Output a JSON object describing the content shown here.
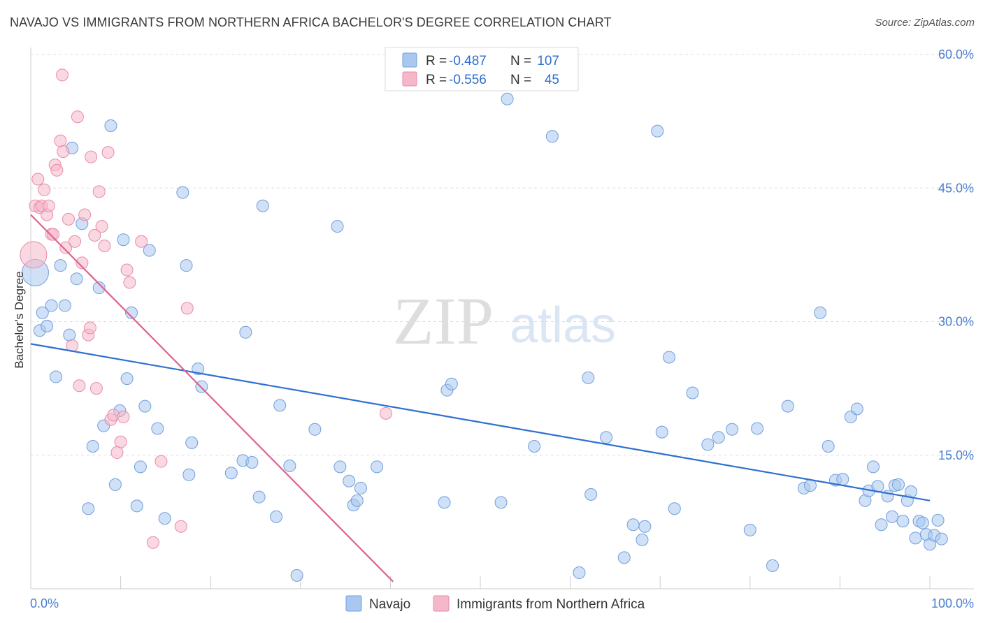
{
  "header": {
    "title": "NAVAJO VS IMMIGRANTS FROM NORTHERN AFRICA BACHELOR'S DEGREE CORRELATION CHART",
    "source": "Source: ZipAtlas.com"
  },
  "watermark": {
    "zip": "ZIP",
    "atlas": "atlas"
  },
  "legend": {
    "rows": [
      {
        "r_label": "R =",
        "r_value": "-0.487",
        "n_label": "N =",
        "n_value": "107"
      },
      {
        "r_label": "R =",
        "r_value": "-0.556",
        "n_label": "N =",
        "n_value": "45"
      }
    ]
  },
  "colors": {
    "navajo_fill": "#a9c8f0",
    "navajo_stroke": "#6f9fdc",
    "navajo_line": "#2f6fcf",
    "immig_fill": "#f5b8cb",
    "immig_stroke": "#e98aa8",
    "immig_line": "#e0628e",
    "grid": "#dddddd",
    "tick_label": "#4a7fd0"
  },
  "chart_data": {
    "type": "scatter",
    "title": "NAVAJO VS IMMIGRANTS FROM NORTHERN AFRICA BACHELOR'S DEGREE CORRELATION CHART",
    "xlabel": "",
    "ylabel": "Bachelor's Degree",
    "xlim": [
      0,
      100
    ],
    "ylim": [
      0,
      60
    ],
    "x_tick_labels": [
      "0.0%",
      "100.0%"
    ],
    "y_ticks": [
      15,
      30,
      45,
      60
    ],
    "y_tick_labels": [
      "15.0%",
      "30.0%",
      "45.0%",
      "60.0%"
    ],
    "grid": "horizontal dashed",
    "legend_position": "top-center",
    "series": [
      {
        "name": "Navajo",
        "color": "#a9c8f0",
        "trend": {
          "x": [
            0,
            100
          ],
          "y": [
            27.5,
            9.9
          ]
        },
        "points": [
          [
            0.5,
            35.5
          ],
          [
            1.0,
            29.0
          ],
          [
            1.3,
            31.0
          ],
          [
            1.8,
            29.5
          ],
          [
            2.3,
            31.8
          ],
          [
            2.8,
            23.8
          ],
          [
            3.3,
            36.3
          ],
          [
            3.8,
            31.8
          ],
          [
            4.3,
            28.5
          ],
          [
            4.6,
            49.5
          ],
          [
            5.1,
            34.8
          ],
          [
            5.7,
            41.0
          ],
          [
            6.4,
            9.0
          ],
          [
            6.9,
            16.0
          ],
          [
            7.6,
            33.8
          ],
          [
            8.1,
            18.3
          ],
          [
            8.9,
            52.0
          ],
          [
            9.4,
            11.7
          ],
          [
            9.9,
            20.0
          ],
          [
            10.3,
            39.2
          ],
          [
            10.7,
            23.6
          ],
          [
            11.2,
            31.0
          ],
          [
            11.8,
            9.3
          ],
          [
            12.2,
            13.7
          ],
          [
            12.7,
            20.5
          ],
          [
            13.2,
            38.0
          ],
          [
            14.1,
            18.0
          ],
          [
            14.9,
            7.9
          ],
          [
            16.9,
            44.5
          ],
          [
            17.3,
            36.3
          ],
          [
            17.6,
            12.8
          ],
          [
            17.9,
            16.4
          ],
          [
            18.6,
            24.7
          ],
          [
            19.0,
            22.7
          ],
          [
            22.3,
            13.0
          ],
          [
            23.6,
            14.4
          ],
          [
            23.9,
            28.8
          ],
          [
            24.6,
            14.2
          ],
          [
            25.4,
            10.3
          ],
          [
            25.8,
            43.0
          ],
          [
            27.3,
            8.1
          ],
          [
            27.7,
            20.6
          ],
          [
            28.8,
            13.8
          ],
          [
            29.6,
            1.5
          ],
          [
            31.6,
            17.9
          ],
          [
            34.1,
            40.7
          ],
          [
            34.4,
            13.7
          ],
          [
            35.4,
            12.1
          ],
          [
            35.9,
            9.4
          ],
          [
            36.3,
            9.9
          ],
          [
            36.7,
            11.3
          ],
          [
            38.5,
            13.7
          ],
          [
            46.0,
            9.7
          ],
          [
            46.3,
            22.3
          ],
          [
            46.8,
            23.0
          ],
          [
            52.3,
            9.7
          ],
          [
            53.0,
            55.0
          ],
          [
            56.0,
            16.0
          ],
          [
            58.0,
            50.8
          ],
          [
            61.0,
            1.8
          ],
          [
            62.0,
            23.7
          ],
          [
            62.3,
            10.6
          ],
          [
            64.0,
            17.0
          ],
          [
            66.0,
            3.5
          ],
          [
            67.0,
            7.2
          ],
          [
            68.0,
            5.5
          ],
          [
            68.3,
            7.0
          ],
          [
            69.7,
            51.4
          ],
          [
            70.2,
            17.6
          ],
          [
            71.0,
            26.0
          ],
          [
            71.6,
            9.0
          ],
          [
            73.6,
            22.0
          ],
          [
            75.3,
            16.2
          ],
          [
            76.5,
            17.0
          ],
          [
            78.0,
            17.9
          ],
          [
            80.0,
            6.6
          ],
          [
            80.8,
            18.0
          ],
          [
            82.5,
            2.6
          ],
          [
            84.2,
            20.5
          ],
          [
            86.0,
            11.3
          ],
          [
            86.7,
            11.6
          ],
          [
            87.8,
            31.0
          ],
          [
            88.7,
            16.0
          ],
          [
            89.5,
            12.2
          ],
          [
            90.3,
            12.3
          ],
          [
            91.2,
            19.3
          ],
          [
            91.9,
            20.2
          ],
          [
            92.8,
            9.9
          ],
          [
            93.2,
            11.0
          ],
          [
            93.7,
            13.7
          ],
          [
            94.2,
            11.5
          ],
          [
            94.6,
            7.2
          ],
          [
            95.3,
            10.4
          ],
          [
            95.8,
            8.1
          ],
          [
            96.1,
            11.6
          ],
          [
            96.5,
            11.7
          ],
          [
            97.0,
            7.6
          ],
          [
            97.5,
            9.9
          ],
          [
            97.9,
            10.9
          ],
          [
            98.4,
            5.7
          ],
          [
            98.8,
            7.6
          ],
          [
            99.2,
            7.4
          ],
          [
            99.6,
            6.1
          ],
          [
            100.0,
            5.0
          ],
          [
            100.5,
            6.0
          ],
          [
            100.9,
            7.7
          ],
          [
            101.3,
            5.6
          ]
        ]
      },
      {
        "name": "Immigrants from Northern Africa",
        "color": "#f5b8cb",
        "trend": {
          "x": [
            0,
            40.3
          ],
          "y": [
            42.0,
            0.8
          ]
        },
        "points": [
          [
            0.3,
            37.5
          ],
          [
            0.5,
            43.0
          ],
          [
            0.8,
            46.0
          ],
          [
            1.0,
            42.8
          ],
          [
            1.2,
            43.0
          ],
          [
            1.5,
            44.8
          ],
          [
            1.8,
            42.0
          ],
          [
            2.0,
            43.0
          ],
          [
            2.3,
            39.8
          ],
          [
            2.5,
            39.8
          ],
          [
            2.7,
            47.6
          ],
          [
            2.9,
            47.0
          ],
          [
            3.3,
            50.3
          ],
          [
            3.6,
            49.1
          ],
          [
            3.9,
            38.3
          ],
          [
            4.2,
            41.5
          ],
          [
            4.6,
            27.3
          ],
          [
            4.9,
            39.0
          ],
          [
            5.2,
            53.0
          ],
          [
            5.4,
            22.8
          ],
          [
            5.7,
            36.6
          ],
          [
            6.0,
            42.0
          ],
          [
            6.4,
            28.5
          ],
          [
            6.7,
            48.5
          ],
          [
            7.1,
            39.7
          ],
          [
            7.3,
            22.5
          ],
          [
            7.6,
            44.6
          ],
          [
            7.9,
            40.7
          ],
          [
            8.2,
            38.5
          ],
          [
            8.6,
            49.0
          ],
          [
            8.9,
            19.0
          ],
          [
            9.2,
            19.5
          ],
          [
            9.6,
            15.3
          ],
          [
            10.0,
            16.5
          ],
          [
            10.3,
            19.3
          ],
          [
            10.7,
            35.8
          ],
          [
            11.0,
            34.4
          ],
          [
            12.3,
            39.0
          ],
          [
            13.6,
            5.2
          ],
          [
            14.5,
            14.3
          ],
          [
            16.7,
            7.0
          ],
          [
            17.4,
            31.5
          ],
          [
            39.5,
            19.7
          ],
          [
            3.5,
            57.7
          ],
          [
            6.6,
            29.3
          ]
        ]
      }
    ]
  }
}
